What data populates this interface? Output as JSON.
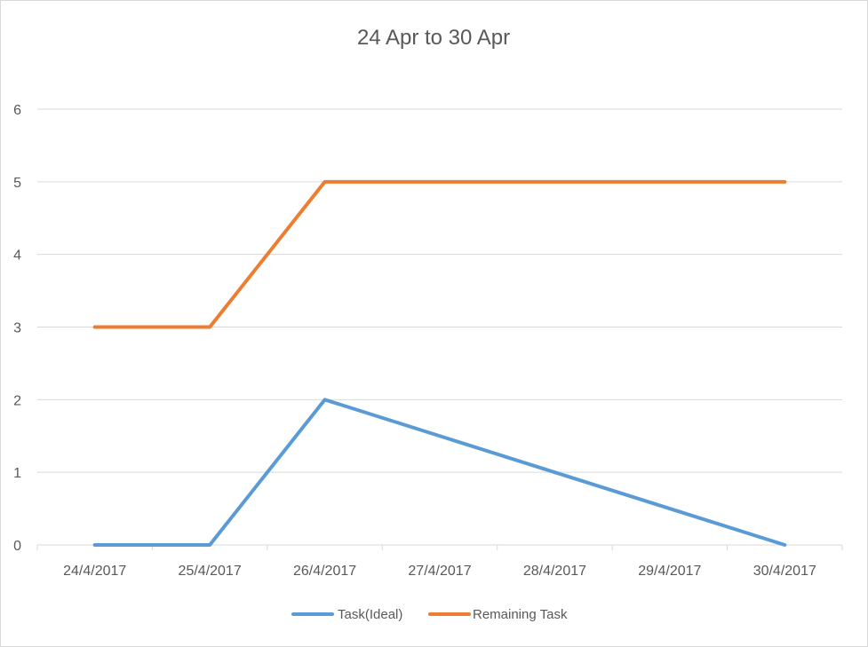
{
  "chart_data": {
    "type": "line",
    "title": "24 Apr to 30 Apr",
    "xlabel": "",
    "ylabel": "",
    "categories": [
      "24/4/2017",
      "25/4/2017",
      "26/4/2017",
      "27/4/2017",
      "28/4/2017",
      "29/4/2017",
      "30/4/2017"
    ],
    "ylim": [
      0,
      6
    ],
    "yticks": [
      0,
      1,
      2,
      3,
      4,
      5,
      6
    ],
    "grid": "horizontal",
    "legend_position": "bottom",
    "series": [
      {
        "name": "Task(Ideal)",
        "color": "#5b9bd5",
        "values": [
          0,
          0,
          2,
          1.5,
          1,
          0.5,
          0
        ]
      },
      {
        "name": "Remaining Task",
        "color": "#ed7d31",
        "values": [
          3,
          3,
          5,
          5,
          5,
          5,
          5
        ]
      }
    ]
  }
}
